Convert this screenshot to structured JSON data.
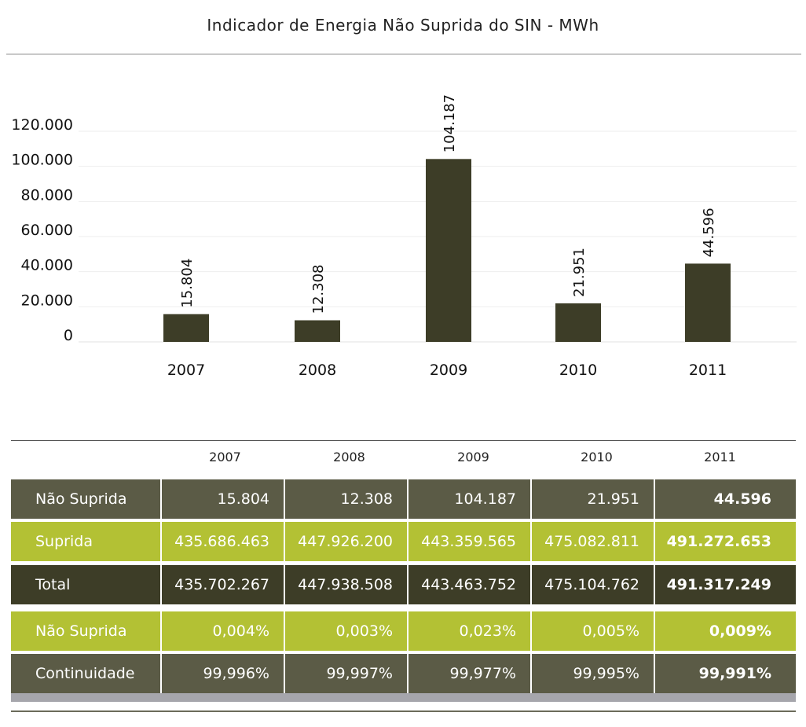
{
  "chart_data": {
    "type": "bar",
    "title": "Indicador de Energia Não Suprida do SIN - MWh",
    "categories": [
      "2007",
      "2008",
      "2009",
      "2010",
      "2011"
    ],
    "values": [
      15804,
      12308,
      104187,
      21951,
      44596
    ],
    "value_labels": [
      "15.804",
      "12.308",
      "104.187",
      "21.951",
      "44.596"
    ],
    "ylim": [
      0,
      120000
    ],
    "yticks": [
      0,
      20000,
      40000,
      60000,
      80000,
      100000,
      120000
    ],
    "ytick_labels": [
      "0",
      "20.000",
      "40.000",
      "60.000",
      "80.000",
      "100.000",
      "120.000"
    ],
    "bar_color": "#3d3d27",
    "grid": true
  },
  "table": {
    "years": [
      "2007",
      "2008",
      "2009",
      "2010",
      "2011"
    ],
    "rows": [
      {
        "label": "Não Suprida",
        "values": [
          "15.804",
          "12.308",
          "104.187",
          "21.951",
          "44.596"
        ],
        "color": "#5b5b46"
      },
      {
        "label": "Suprida",
        "values": [
          "435.686.463",
          "447.926.200",
          "443.359.565",
          "475.082.811",
          "491.272.653"
        ],
        "color": "#b3c134"
      },
      {
        "label": "Total",
        "values": [
          "435.702.267",
          "447.938.508",
          "443.463.752",
          "475.104.762",
          "491.317.249"
        ],
        "color": "#3d3d27"
      },
      {
        "label": "Não Suprida",
        "values": [
          "0,004%",
          "0,003%",
          "0,023%",
          "0,005%",
          "0,009%"
        ],
        "color": "#b3c134"
      },
      {
        "label": "Continuidade",
        "values": [
          "99,996%",
          "99,997%",
          "99,977%",
          "99,995%",
          "99,991%"
        ],
        "color": "#5b5b46"
      }
    ]
  }
}
